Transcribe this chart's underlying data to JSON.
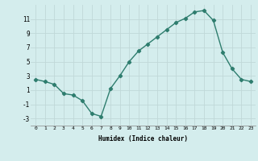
{
  "x": [
    0,
    1,
    2,
    3,
    4,
    5,
    6,
    7,
    8,
    9,
    10,
    11,
    12,
    13,
    14,
    15,
    16,
    17,
    18,
    19,
    20,
    21,
    22,
    23
  ],
  "y": [
    2.5,
    2.2,
    1.8,
    0.5,
    0.3,
    -0.5,
    -2.3,
    -2.7,
    1.2,
    3.0,
    5.0,
    6.5,
    7.5,
    8.5,
    9.5,
    10.5,
    11.1,
    12.0,
    12.2,
    10.8,
    6.3,
    4.0,
    2.5,
    2.2
  ],
  "xlabel": "Humidex (Indice chaleur)",
  "xlim": [
    -0.5,
    23.5
  ],
  "ylim": [
    -4,
    13
  ],
  "yticks": [
    -3,
    -1,
    1,
    3,
    5,
    7,
    9,
    11
  ],
  "xticks": [
    0,
    1,
    2,
    3,
    4,
    5,
    6,
    7,
    8,
    9,
    10,
    11,
    12,
    13,
    14,
    15,
    16,
    17,
    18,
    19,
    20,
    21,
    22,
    23
  ],
  "line_color": "#2e7d6e",
  "bg_color": "#d4eded",
  "grid_color": "#c0d8d8",
  "marker": "D",
  "marker_size": 2.2,
  "line_width": 1.0
}
